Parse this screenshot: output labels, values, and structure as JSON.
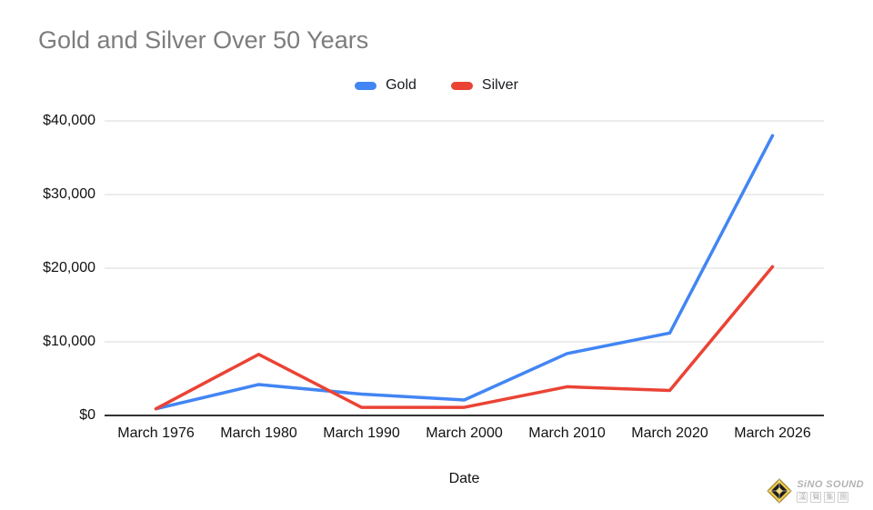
{
  "chart_data": {
    "type": "line",
    "title": "Gold and Silver Over 50 Years",
    "categories": [
      "March 1976",
      "March 1980",
      "March 1990",
      "March 2000",
      "March 2010",
      "March 2020",
      "March 2026"
    ],
    "series": [
      {
        "name": "Gold",
        "color": "#4285F4",
        "values": [
          900,
          4200,
          2900,
          2100,
          8400,
          11200,
          38000
        ]
      },
      {
        "name": "Silver",
        "color": "#EA4335",
        "values": [
          900,
          8300,
          1100,
          1100,
          3900,
          3400,
          20200
        ]
      }
    ],
    "xlabel": "Date",
    "ylabel": "",
    "ylim": [
      0,
      40000
    ],
    "yticks": [
      0,
      10000,
      20000,
      30000,
      40000
    ],
    "ytick_labels": [
      "$0",
      "$10,000",
      "$20,000",
      "$30,000",
      "$40,000"
    ],
    "legend_position": "top",
    "grid": true,
    "line_width": 3.5
  },
  "styles": {
    "title_color": "#7d7d7d",
    "grid_color": "#e0e0e0",
    "axis_color": "#333333",
    "tick_label_color": "#111111",
    "gold_color": "#4285F4",
    "silver_color": "#EA4335"
  },
  "watermark": {
    "brand": "SiNO SOUND",
    "chinese": "漢聲集團"
  }
}
